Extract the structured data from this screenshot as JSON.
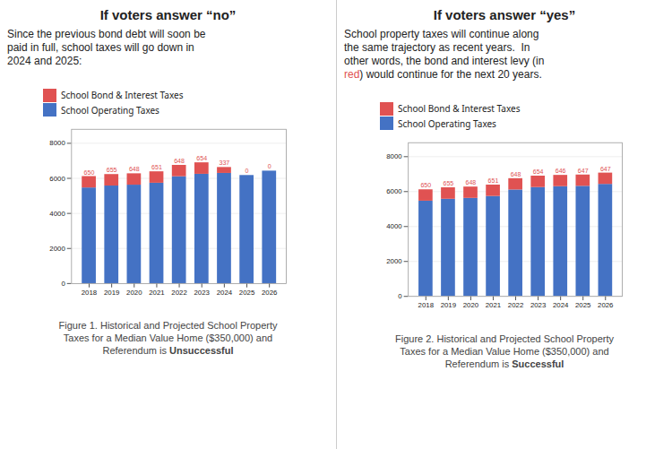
{
  "chart_data": [
    {
      "type": "bar",
      "stacked": true,
      "title": "If voters answer “no”",
      "subtitle": [
        "Since the previous bond debt will soon be",
        "paid in full, school taxes will go down in",
        "2024 and 2025:"
      ],
      "caption": [
        "Figure 1. Historical and Projected School Property",
        "Taxes for a Median Value Home ($350,000) and",
        [
          {
            "text": "Referendum is "
          },
          {
            "text": "Unsuccessful",
            "bold": true
          }
        ]
      ],
      "categories": [
        "2018",
        "2019",
        "2020",
        "2021",
        "2022",
        "2023",
        "2024",
        "2025",
        "2026"
      ],
      "series": [
        {
          "name": "School Bond & Interest Taxes",
          "color": "#E05252",
          "values": [
            650,
            655,
            648,
            651,
            648,
            654,
            337,
            0,
            0
          ],
          "data_labels": true
        },
        {
          "name": "School Operating Taxes",
          "color": "#4472C4",
          "values": [
            5460,
            5570,
            5620,
            5730,
            6100,
            6240,
            6290,
            6170,
            6420
          ]
        }
      ],
      "ylim": [
        0,
        8800
      ],
      "yticks": [
        0,
        2000,
        4000,
        6000,
        8000
      ],
      "grid": true,
      "legend": "top"
    },
    {
      "type": "bar",
      "stacked": true,
      "title": "If voters answer “yes”",
      "subtitle": [
        "School property taxes will continue along",
        "the same trajectory as recent years.  In",
        "other words, the bond and interest levy (in",
        [
          {
            "text": "red",
            "color": "#E05252"
          },
          {
            "text": ") would continue for the next 20 years."
          }
        ]
      ],
      "caption": [
        "Figure 2. Historical and Projected School Property",
        "Taxes for a Median Value Home ($350,000) and",
        [
          {
            "text": "Referendum is "
          },
          {
            "text": "Successful",
            "bold": true
          }
        ]
      ],
      "categories": [
        "2018",
        "2019",
        "2020",
        "2021",
        "2022",
        "2023",
        "2024",
        "2025",
        "2026"
      ],
      "series": [
        {
          "name": "School Bond & Interest Taxes",
          "color": "#E05252",
          "values": [
            650,
            655,
            648,
            651,
            648,
            654,
            646,
            647,
            647
          ],
          "data_labels": true
        },
        {
          "name": "School Operating Taxes",
          "color": "#4472C4",
          "values": [
            5460,
            5570,
            5620,
            5730,
            6100,
            6240,
            6290,
            6310,
            6420
          ]
        }
      ],
      "ylim": [
        0,
        8800
      ],
      "yticks": [
        0,
        2000,
        4000,
        6000,
        8000
      ],
      "grid": true,
      "legend": "top"
    }
  ]
}
